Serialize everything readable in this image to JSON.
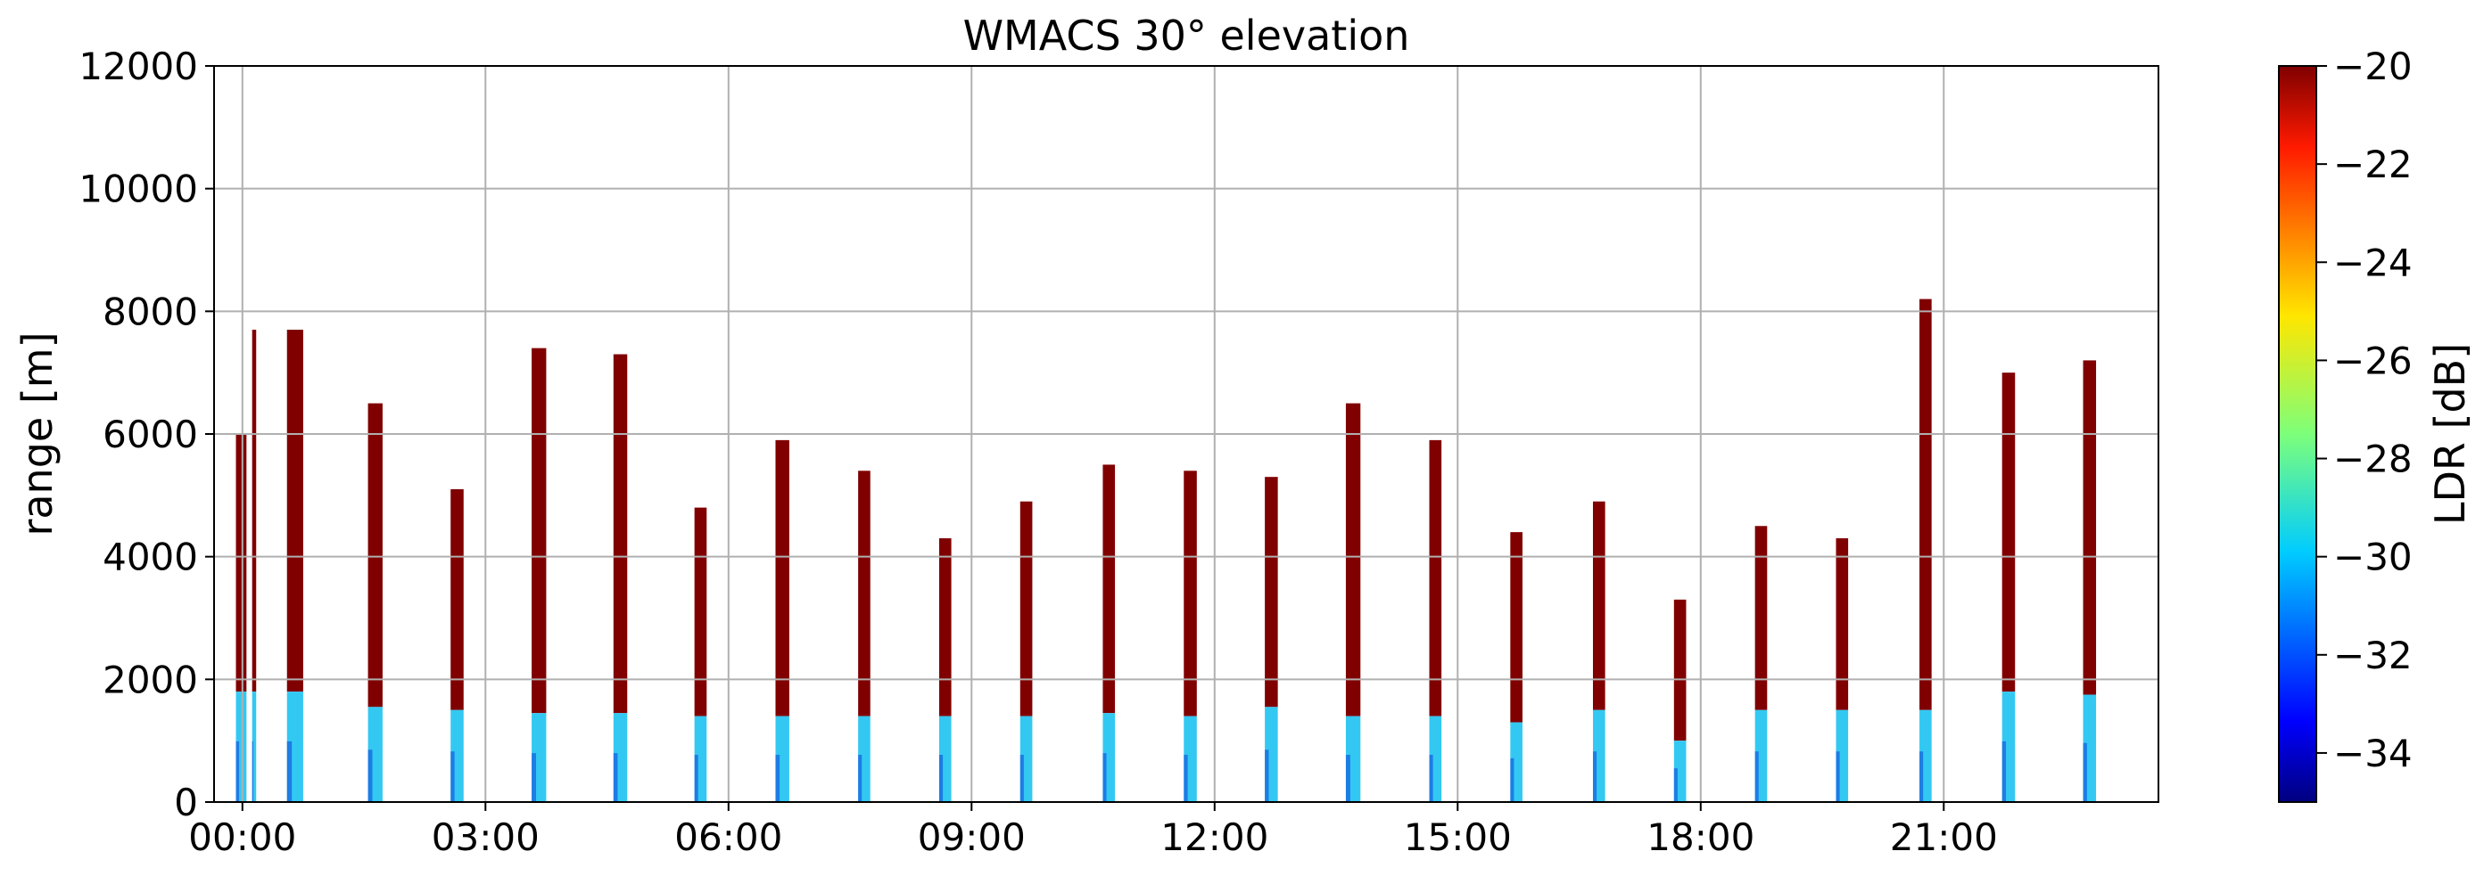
{
  "chart_data": {
    "type": "heatmap",
    "title": "WMACS 30° elevation",
    "xlabel": "",
    "ylabel": "range [m]",
    "xlim_hours": [
      -0.35,
      23.65
    ],
    "ylim": [
      0,
      12000
    ],
    "x_ticks": [
      {
        "hour": 0,
        "label": "00:00"
      },
      {
        "hour": 3,
        "label": "03:00"
      },
      {
        "hour": 6,
        "label": "06:00"
      },
      {
        "hour": 9,
        "label": "09:00"
      },
      {
        "hour": 12,
        "label": "12:00"
      },
      {
        "hour": 15,
        "label": "15:00"
      },
      {
        "hour": 18,
        "label": "18:00"
      },
      {
        "hour": 21,
        "label": "21:00"
      }
    ],
    "y_ticks": [
      {
        "value": 0,
        "label": "0"
      },
      {
        "value": 2000,
        "label": "2000"
      },
      {
        "value": 4000,
        "label": "4000"
      },
      {
        "value": 6000,
        "label": "6000"
      },
      {
        "value": 8000,
        "label": "8000"
      },
      {
        "value": 10000,
        "label": "10000"
      },
      {
        "value": 12000,
        "label": "12000"
      }
    ],
    "grid": true,
    "colorbar": {
      "label": "LDR [dB]",
      "range": [
        -35,
        -20
      ],
      "colormap": "jet",
      "ticks": [
        {
          "value": -20,
          "label": "−20"
        },
        {
          "value": -22,
          "label": "−22"
        },
        {
          "value": -24,
          "label": "−24"
        },
        {
          "value": -26,
          "label": "−26"
        },
        {
          "value": -28,
          "label": "−28"
        },
        {
          "value": -30,
          "label": "−30"
        },
        {
          "value": -32,
          "label": "−32"
        },
        {
          "value": -34,
          "label": "−34"
        }
      ]
    },
    "colors": {
      "high_ldr": "#800000",
      "low_ldr_light": "#33c8f2",
      "low_ldr_dark": "#0a3fd9",
      "grid": "#b0b0b0"
    },
    "scans_note_units": "start_hour, end_hour, top range [m], boundary range [m] between low-LDR (below) and high-LDR (above)",
    "scans": [
      {
        "start": -0.08,
        "end": 0.05,
        "top": 6000,
        "boundary": 1800
      },
      {
        "start": 0.12,
        "end": 0.17,
        "top": 7700,
        "boundary": 1800
      },
      {
        "start": 0.55,
        "end": 0.75,
        "top": 7700,
        "boundary": 1800
      },
      {
        "start": 1.55,
        "end": 1.73,
        "top": 6500,
        "boundary": 1550
      },
      {
        "start": 2.57,
        "end": 2.73,
        "top": 5100,
        "boundary": 1500
      },
      {
        "start": 3.57,
        "end": 3.75,
        "top": 7400,
        "boundary": 1450
      },
      {
        "start": 4.58,
        "end": 4.75,
        "top": 7300,
        "boundary": 1450
      },
      {
        "start": 5.58,
        "end": 5.73,
        "top": 4800,
        "boundary": 1400
      },
      {
        "start": 6.58,
        "end": 6.75,
        "top": 5900,
        "boundary": 1400
      },
      {
        "start": 7.6,
        "end": 7.75,
        "top": 5400,
        "boundary": 1400
      },
      {
        "start": 8.6,
        "end": 8.75,
        "top": 4300,
        "boundary": 1400
      },
      {
        "start": 9.6,
        "end": 9.75,
        "top": 4900,
        "boundary": 1400
      },
      {
        "start": 10.62,
        "end": 10.77,
        "top": 5500,
        "boundary": 1450
      },
      {
        "start": 11.62,
        "end": 11.78,
        "top": 5400,
        "boundary": 1400
      },
      {
        "start": 12.62,
        "end": 12.78,
        "top": 5300,
        "boundary": 1550
      },
      {
        "start": 13.62,
        "end": 13.8,
        "top": 6500,
        "boundary": 1400
      },
      {
        "start": 14.65,
        "end": 14.8,
        "top": 5900,
        "boundary": 1400
      },
      {
        "start": 15.65,
        "end": 15.8,
        "top": 4400,
        "boundary": 1300
      },
      {
        "start": 16.67,
        "end": 16.82,
        "top": 4900,
        "boundary": 1500
      },
      {
        "start": 17.67,
        "end": 17.82,
        "top": 3300,
        "boundary": 1000
      },
      {
        "start": 18.67,
        "end": 18.82,
        "top": 4500,
        "boundary": 1500
      },
      {
        "start": 19.67,
        "end": 19.82,
        "top": 4300,
        "boundary": 1500
      },
      {
        "start": 20.7,
        "end": 20.85,
        "top": 8200,
        "boundary": 1500
      },
      {
        "start": 21.72,
        "end": 21.88,
        "top": 7000,
        "boundary": 1800
      },
      {
        "start": 22.72,
        "end": 22.88,
        "top": 7200,
        "boundary": 1750
      }
    ]
  }
}
